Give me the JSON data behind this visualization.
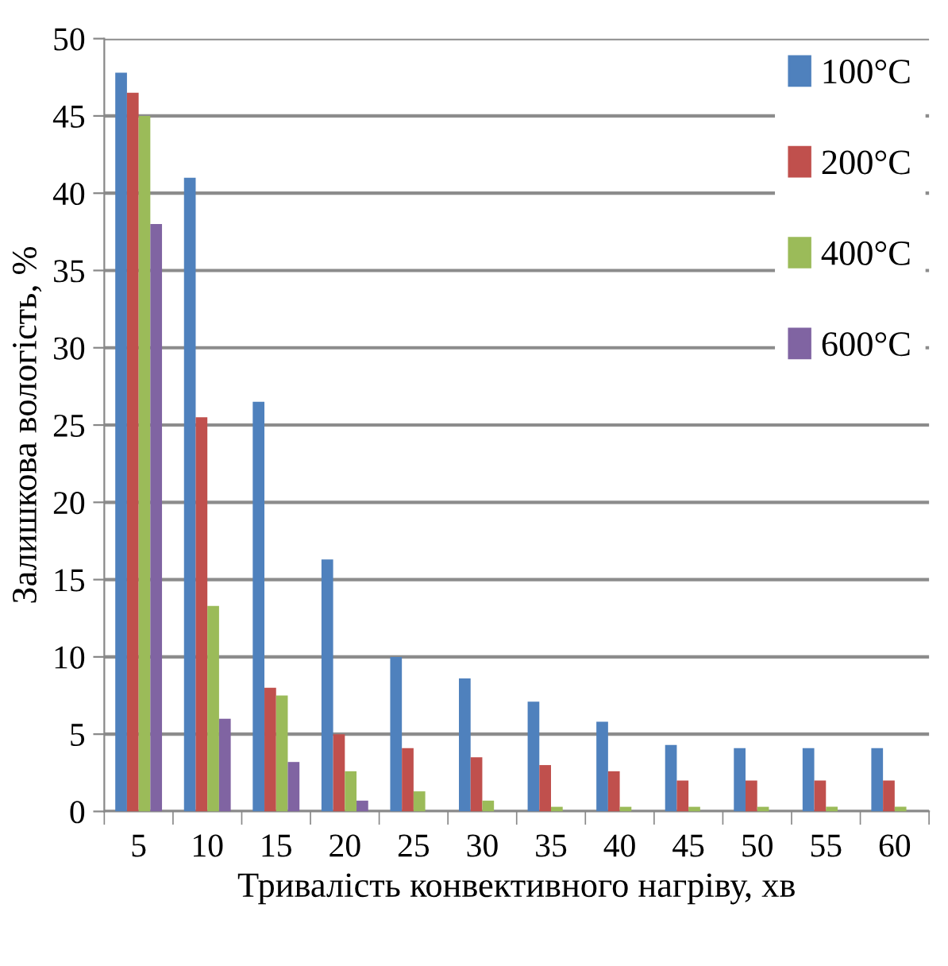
{
  "chart_data": {
    "type": "bar",
    "xlabel": "Тривалість конвективного нагріву, хв",
    "ylabel": "Залишкова вологість, %",
    "categories": [
      "5",
      "10",
      "15",
      "20",
      "25",
      "30",
      "35",
      "40",
      "45",
      "50",
      "55",
      "60"
    ],
    "series": [
      {
        "name": "100°C",
        "color": "#4f81bd",
        "values": [
          47.8,
          41,
          26.5,
          16.3,
          10,
          8.6,
          7.1,
          5.8,
          4.3,
          4.1,
          4.1,
          4.1
        ]
      },
      {
        "name": "200°C",
        "color": "#c0504d",
        "values": [
          46.5,
          25.5,
          8,
          5,
          4.1,
          3.5,
          3,
          2.6,
          2,
          2,
          2,
          2
        ]
      },
      {
        "name": "400°C",
        "color": "#9bbb59",
        "values": [
          45,
          13.3,
          7.5,
          2.6,
          1.3,
          0.7,
          0.3,
          0.3,
          0.3,
          0.3,
          0.3,
          0.3
        ]
      },
      {
        "name": "600°C",
        "color": "#8064a2",
        "values": [
          38,
          6,
          3.2,
          0.7,
          0,
          0,
          0,
          0,
          0,
          0,
          0,
          0
        ]
      }
    ],
    "ylim": [
      0,
      50
    ],
    "yticks": [
      0,
      5,
      10,
      15,
      20,
      25,
      30,
      35,
      40,
      45,
      50
    ],
    "grid": "y",
    "legend": "top right"
  }
}
